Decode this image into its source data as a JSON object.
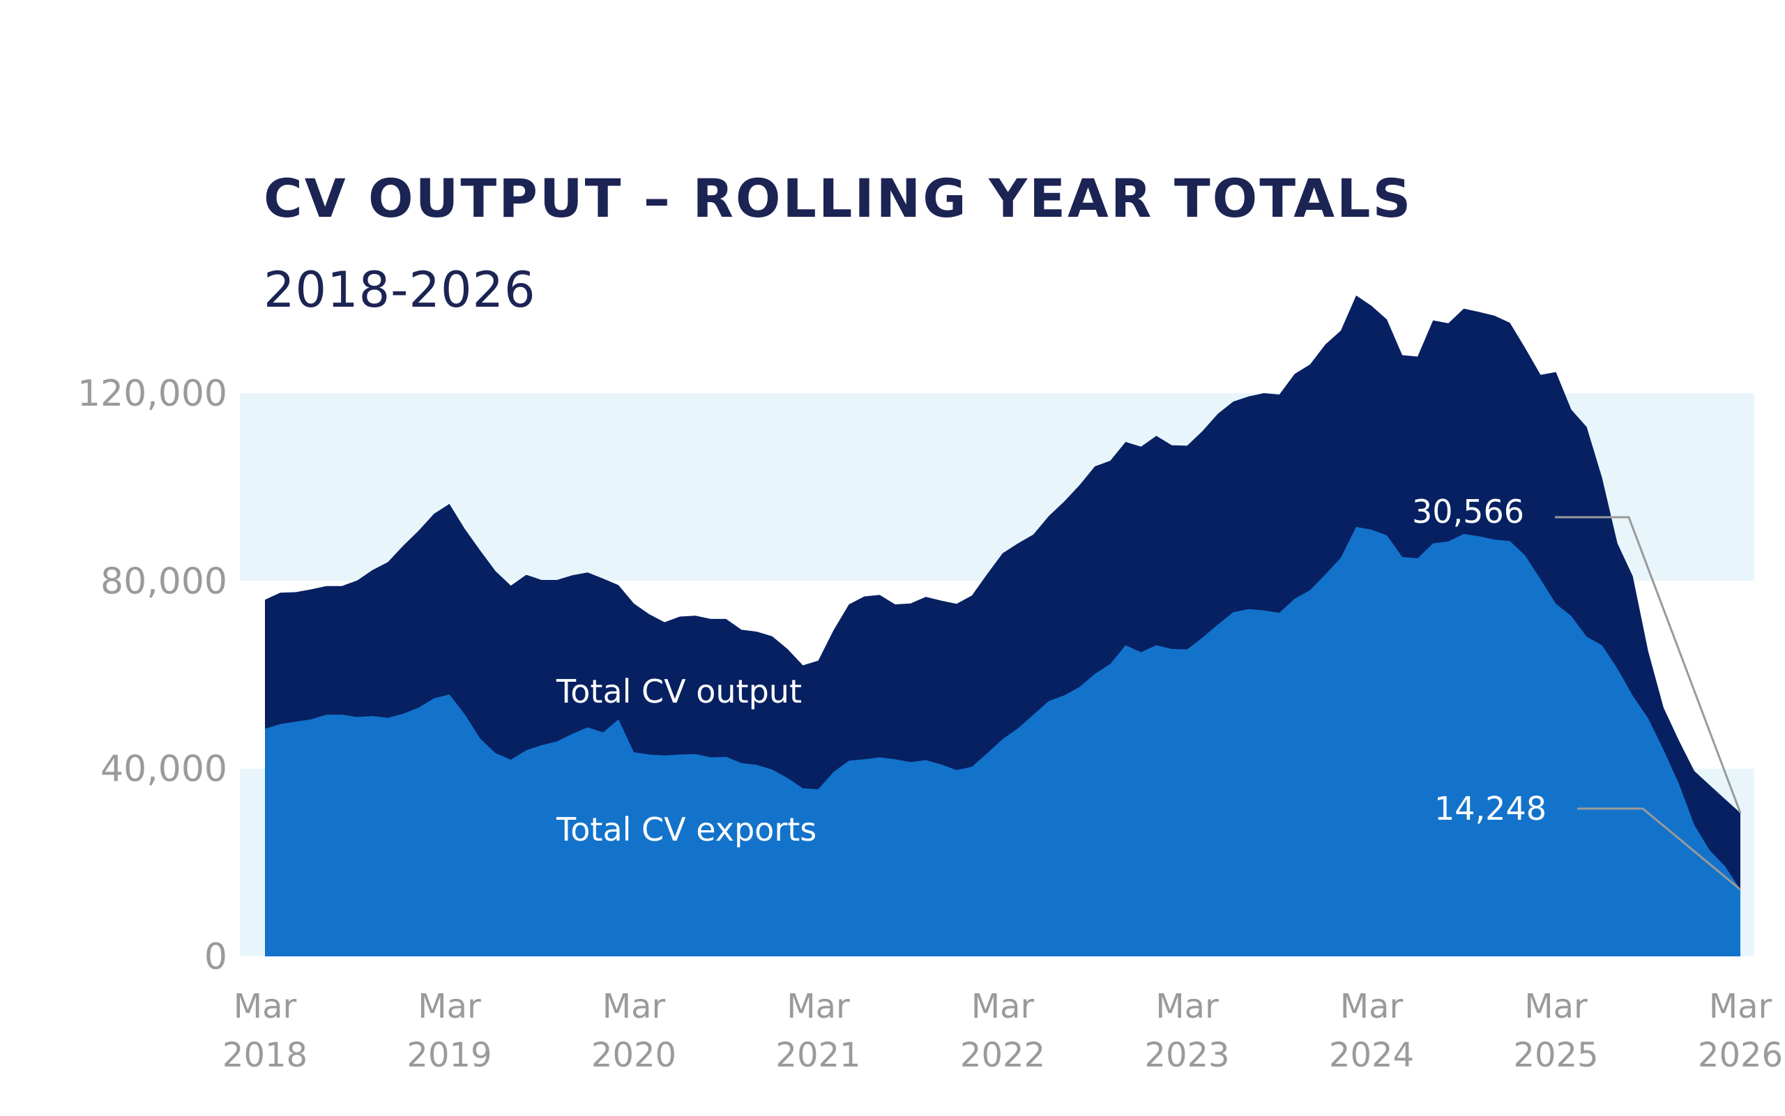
{
  "chart_data": {
    "type": "area",
    "title": "CV OUTPUT – ROLLING YEAR TOTALS",
    "subtitle": "2018-2026",
    "xlabel": "",
    "ylabel": "",
    "ylim": [
      0,
      120000
    ],
    "yticks": [
      {
        "value": 0,
        "label": "0"
      },
      {
        "value": 40000,
        "label": "40,000"
      },
      {
        "value": 80000,
        "label": "80,000"
      },
      {
        "value": 120000,
        "label": "120,000"
      }
    ],
    "xticks": [
      {
        "month": "Mar",
        "year": "2018"
      },
      {
        "month": "Mar",
        "year": "2019"
      },
      {
        "month": "Mar",
        "year": "2020"
      },
      {
        "month": "Mar",
        "year": "2021"
      },
      {
        "month": "Mar",
        "year": "2022"
      },
      {
        "month": "Mar",
        "year": "2023"
      },
      {
        "month": "Mar",
        "year": "2024"
      },
      {
        "month": "Mar",
        "year": "2025"
      },
      {
        "month": "Mar",
        "year": "2026"
      }
    ],
    "x": [
      "2018-03",
      "2018-04",
      "2018-05",
      "2018-06",
      "2018-07",
      "2018-08",
      "2018-09",
      "2018-10",
      "2018-11",
      "2018-12",
      "2019-01",
      "2019-02",
      "2019-03",
      "2019-04",
      "2019-05",
      "2019-06",
      "2019-07",
      "2019-08",
      "2019-09",
      "2019-10",
      "2019-11",
      "2019-12",
      "2020-01",
      "2020-02",
      "2020-03",
      "2020-04",
      "2020-05",
      "2020-06",
      "2020-07",
      "2020-08",
      "2020-09",
      "2020-10",
      "2020-11",
      "2020-12",
      "2021-01",
      "2021-02",
      "2021-03",
      "2021-04",
      "2021-05",
      "2021-06",
      "2021-07",
      "2021-08",
      "2021-09",
      "2021-10",
      "2021-11",
      "2021-12",
      "2022-01",
      "2022-02",
      "2022-03",
      "2022-04",
      "2022-05",
      "2022-06",
      "2022-07",
      "2022-08",
      "2022-09",
      "2022-10",
      "2022-11",
      "2022-12",
      "2023-01",
      "2023-02",
      "2023-03",
      "2023-04",
      "2023-05",
      "2023-06",
      "2023-07",
      "2023-08",
      "2023-09",
      "2023-10",
      "2023-11",
      "2023-12",
      "2024-01",
      "2024-02",
      "2024-03",
      "2024-04",
      "2024-05",
      "2024-06",
      "2024-07",
      "2024-08",
      "2024-09",
      "2024-10",
      "2024-11",
      "2024-12",
      "2025-01",
      "2025-02",
      "2025-03",
      "2025-04",
      "2025-05",
      "2025-06",
      "2025-07",
      "2025-08",
      "2025-09",
      "2025-10",
      "2025-11",
      "2025-12",
      "2026-01",
      "2026-02",
      "2026-03"
    ],
    "series": [
      {
        "name": "Total CV output",
        "color": "#062062",
        "values": [
          76000,
          77500,
          77600,
          78200,
          78900,
          78900,
          80100,
          82300,
          84000,
          87500,
          90700,
          94300,
          96400,
          91100,
          86500,
          82100,
          79000,
          81300,
          80200,
          80200,
          81200,
          81800,
          80500,
          79100,
          75200,
          72900,
          71200,
          72400,
          72600,
          71900,
          71900,
          69600,
          69200,
          68200,
          65500,
          62000,
          63000,
          69500,
          75000,
          76700,
          77000,
          75000,
          75200,
          76600,
          75800,
          75100,
          76900,
          81500,
          85900,
          88000,
          89900,
          93800,
          96900,
          100400,
          104400,
          105600,
          109600,
          108600,
          110900,
          108900,
          108800,
          111900,
          115600,
          118200,
          119300,
          120000,
          119700,
          124100,
          126100,
          130400,
          133300,
          140800,
          138600,
          135700,
          128100,
          127800,
          135500,
          134900,
          138000,
          137300,
          136500,
          135000,
          129600,
          123900,
          124500,
          116500,
          112800,
          102000,
          88000,
          81000,
          65000,
          53000,
          46000,
          39500,
          36500,
          33500,
          30566
        ]
      },
      {
        "name": "Total CV exports",
        "color": "#1373cb",
        "values": [
          48500,
          49500,
          50000,
          50500,
          51500,
          51500,
          51000,
          51200,
          50800,
          51700,
          53000,
          55000,
          55800,
          51600,
          46400,
          43300,
          41900,
          43900,
          45000,
          45800,
          47400,
          48800,
          47700,
          50500,
          43500,
          43000,
          42800,
          43000,
          43100,
          42400,
          42500,
          41200,
          40800,
          39800,
          38000,
          35800,
          35600,
          39300,
          41700,
          42000,
          42400,
          42000,
          41400,
          41800,
          40900,
          39700,
          40400,
          43300,
          46300,
          48600,
          51500,
          54400,
          55600,
          57400,
          60200,
          62300,
          66300,
          64800,
          66300,
          65500,
          65400,
          67900,
          70700,
          73300,
          74000,
          73700,
          73200,
          76200,
          78000,
          81400,
          84900,
          91500,
          90900,
          89700,
          85100,
          84800,
          88000,
          88400,
          90000,
          89500,
          88800,
          88500,
          85400,
          80300,
          75100,
          72500,
          68100,
          66300,
          61300,
          55500,
          50700,
          44000,
          36800,
          28000,
          22600,
          19200,
          14248
        ]
      }
    ],
    "annotations": [
      {
        "series": "Total CV output",
        "label": "30,566"
      },
      {
        "series": "Total CV exports",
        "label": "14,248"
      }
    ],
    "background_bands": [
      [
        0,
        40000
      ],
      [
        80000,
        120000
      ]
    ],
    "band_color": "#e8f6fb",
    "grid": false,
    "legend": "inline labels"
  }
}
